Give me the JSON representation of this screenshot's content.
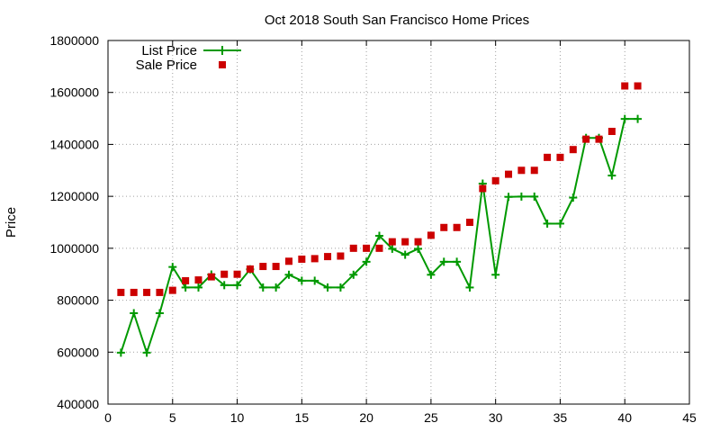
{
  "chart_data": {
    "type": "line",
    "title": "Oct 2018 South San Francisco Home Prices",
    "xlabel": "",
    "ylabel": "Price",
    "xlim": [
      0,
      45
    ],
    "ylim": [
      400000,
      1800000
    ],
    "xticks": [
      0,
      5,
      10,
      15,
      20,
      25,
      30,
      35,
      40,
      45
    ],
    "yticks": [
      400000,
      600000,
      800000,
      1000000,
      1200000,
      1400000,
      1600000,
      1800000
    ],
    "grid": true,
    "legend_position": "top-left",
    "x": [
      1,
      2,
      3,
      4,
      5,
      6,
      7,
      8,
      9,
      10,
      11,
      12,
      13,
      14,
      15,
      16,
      17,
      18,
      19,
      20,
      21,
      22,
      23,
      24,
      25,
      26,
      27,
      28,
      29,
      30,
      31,
      32,
      33,
      34,
      35,
      36,
      37,
      38,
      39,
      40,
      41
    ],
    "series": [
      {
        "name": "List Price",
        "style": "line-plus",
        "color": "#009900",
        "values": [
          598000,
          750000,
          598000,
          750000,
          928000,
          849000,
          849000,
          899000,
          858000,
          858000,
          919000,
          849000,
          849000,
          898000,
          875000,
          875000,
          849000,
          849000,
          898000,
          948000,
          1048000,
          998000,
          975000,
          998000,
          898000,
          948000,
          948000,
          849000,
          1249000,
          898000,
          1198000,
          1199000,
          1199000,
          1095000,
          1095000,
          1195000,
          1425000,
          1425000,
          1280000,
          1498000,
          1498000
        ]
      },
      {
        "name": "Sale Price",
        "style": "square-points",
        "color": "#cc0000",
        "values": [
          830000,
          830000,
          830000,
          830000,
          838000,
          875000,
          878000,
          890000,
          900000,
          900000,
          920000,
          930000,
          930000,
          950000,
          958000,
          960000,
          968000,
          970000,
          1000000,
          1000000,
          1000000,
          1025000,
          1025000,
          1025000,
          1050000,
          1080000,
          1080000,
          1100000,
          1230000,
          1260000,
          1285000,
          1300000,
          1300000,
          1350000,
          1350000,
          1380000,
          1420000,
          1420000,
          1450000,
          1625000,
          1625000
        ]
      }
    ]
  }
}
